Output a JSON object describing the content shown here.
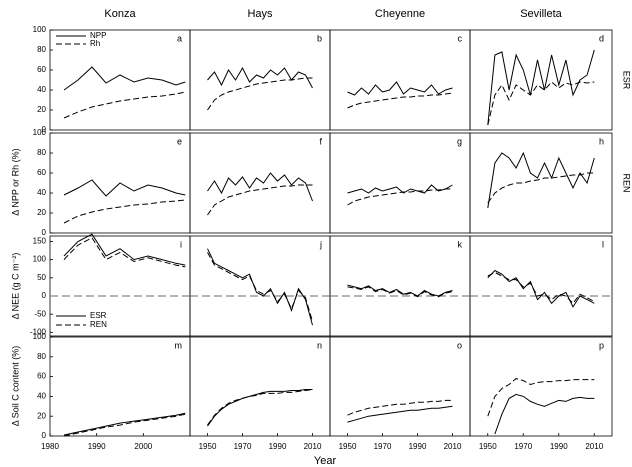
{
  "figure": {
    "x_label": "Year",
    "y_labels": [
      "Δ NPP or Rh (%)",
      "Δ NEE (g C m⁻²)",
      "Δ Soil C content (%)"
    ],
    "side_labels": [
      "ESR",
      "REN"
    ]
  },
  "chart_data": [
    {
      "type": "line",
      "label": "a",
      "title": "Konza",
      "x": [
        1983,
        1986,
        1989,
        1992,
        1995,
        1998,
        2001,
        2004,
        2007,
        2009
      ],
      "xlim": [
        1980,
        2010
      ],
      "ylim": [
        0,
        100
      ],
      "yticks": [
        0,
        20,
        40,
        60,
        80,
        100
      ],
      "legend": "upper left",
      "series": [
        {
          "name": "NPP",
          "color": "#000000",
          "dash": false,
          "values": [
            40,
            50,
            63,
            47,
            55,
            48,
            52,
            50,
            45,
            48
          ]
        },
        {
          "name": "Rh",
          "color": "#000000",
          "dash": true,
          "values": [
            12,
            18,
            23,
            26,
            29,
            31,
            33,
            34,
            36,
            38
          ]
        }
      ]
    },
    {
      "type": "line",
      "label": "b",
      "title": "Hays",
      "x": [
        1950,
        1954,
        1958,
        1962,
        1966,
        1970,
        1974,
        1978,
        1982,
        1986,
        1990,
        1994,
        1998,
        2002,
        2006,
        2010
      ],
      "xlim": [
        1940,
        2020
      ],
      "ylim": [
        0,
        100
      ],
      "series": [
        {
          "color": "#000000",
          "dash": false,
          "values": [
            50,
            58,
            45,
            60,
            50,
            62,
            48,
            55,
            52,
            60,
            55,
            62,
            50,
            58,
            55,
            42
          ]
        },
        {
          "color": "#000000",
          "dash": true,
          "values": [
            20,
            30,
            35,
            38,
            40,
            42,
            44,
            46,
            47,
            48,
            49,
            50,
            50,
            51,
            52,
            52
          ]
        }
      ]
    },
    {
      "type": "line",
      "label": "c",
      "title": "Cheyenne",
      "x": [
        1950,
        1954,
        1958,
        1962,
        1966,
        1970,
        1974,
        1978,
        1982,
        1986,
        1990,
        1994,
        1998,
        2002,
        2006,
        2010
      ],
      "xlim": [
        1940,
        2020
      ],
      "ylim": [
        0,
        100
      ],
      "series": [
        {
          "color": "#000000",
          "dash": false,
          "values": [
            38,
            35,
            42,
            36,
            45,
            38,
            40,
            48,
            36,
            42,
            40,
            38,
            45,
            36,
            40,
            42
          ]
        },
        {
          "color": "#000000",
          "dash": true,
          "values": [
            22,
            25,
            27,
            28,
            29,
            30,
            31,
            32,
            33,
            33,
            34,
            34,
            35,
            35,
            36,
            37
          ]
        }
      ]
    },
    {
      "type": "line",
      "label": "d",
      "title": "Sevilleta",
      "x": [
        1950,
        1954,
        1958,
        1962,
        1966,
        1970,
        1974,
        1978,
        1982,
        1986,
        1990,
        1994,
        1998,
        2002,
        2006,
        2010
      ],
      "xlim": [
        1940,
        2020
      ],
      "ylim": [
        0,
        100
      ],
      "series": [
        {
          "color": "#000000",
          "dash": false,
          "values": [
            5,
            75,
            78,
            40,
            75,
            60,
            35,
            70,
            40,
            75,
            45,
            70,
            35,
            50,
            55,
            80
          ]
        },
        {
          "color": "#000000",
          "dash": true,
          "values": [
            5,
            35,
            45,
            30,
            45,
            40,
            35,
            45,
            40,
            48,
            42,
            47,
            45,
            48,
            47,
            48
          ]
        }
      ]
    },
    {
      "type": "line",
      "label": "e",
      "x": [
        1983,
        1986,
        1989,
        1992,
        1995,
        1998,
        2001,
        2004,
        2007,
        2009
      ],
      "xlim": [
        1980,
        2010
      ],
      "ylim": [
        0,
        100
      ],
      "yticks": [
        0,
        20,
        40,
        60,
        80,
        100
      ],
      "series": [
        {
          "color": "#000000",
          "dash": false,
          "values": [
            38,
            45,
            53,
            37,
            50,
            42,
            48,
            45,
            40,
            38
          ]
        },
        {
          "color": "#000000",
          "dash": true,
          "values": [
            10,
            17,
            21,
            24,
            26,
            28,
            29,
            31,
            32,
            33
          ]
        }
      ]
    },
    {
      "type": "line",
      "label": "f",
      "x": [
        1950,
        1954,
        1958,
        1962,
        1966,
        1970,
        1974,
        1978,
        1982,
        1986,
        1990,
        1994,
        1998,
        2002,
        2006,
        2010
      ],
      "xlim": [
        1940,
        2020
      ],
      "ylim": [
        0,
        100
      ],
      "series": [
        {
          "color": "#000000",
          "dash": false,
          "values": [
            42,
            52,
            40,
            55,
            48,
            56,
            45,
            55,
            50,
            60,
            52,
            58,
            48,
            55,
            50,
            32
          ]
        },
        {
          "color": "#000000",
          "dash": true,
          "values": [
            18,
            28,
            32,
            36,
            38,
            40,
            42,
            43,
            44,
            45,
            46,
            47,
            47,
            48,
            48,
            48
          ]
        }
      ]
    },
    {
      "type": "line",
      "label": "g",
      "x": [
        1950,
        1954,
        1958,
        1962,
        1966,
        1970,
        1974,
        1978,
        1982,
        1986,
        1990,
        1994,
        1998,
        2002,
        2006,
        2010
      ],
      "xlim": [
        1940,
        2020
      ],
      "ylim": [
        0,
        100
      ],
      "series": [
        {
          "color": "#000000",
          "dash": false,
          "values": [
            40,
            42,
            44,
            40,
            45,
            42,
            44,
            46,
            40,
            44,
            42,
            40,
            48,
            42,
            44,
            48
          ]
        },
        {
          "color": "#000000",
          "dash": true,
          "values": [
            28,
            32,
            34,
            36,
            37,
            38,
            39,
            40,
            41,
            41,
            42,
            42,
            43,
            43,
            44,
            44
          ]
        }
      ]
    },
    {
      "type": "line",
      "label": "h",
      "x": [
        1950,
        1954,
        1958,
        1962,
        1966,
        1970,
        1974,
        1978,
        1982,
        1986,
        1990,
        1994,
        1998,
        2002,
        2006,
        2010
      ],
      "xlim": [
        1940,
        2020
      ],
      "ylim": [
        0,
        100
      ],
      "series": [
        {
          "color": "#000000",
          "dash": false,
          "values": [
            25,
            70,
            80,
            75,
            65,
            80,
            60,
            55,
            70,
            55,
            75,
            60,
            45,
            60,
            50,
            75
          ]
        },
        {
          "color": "#000000",
          "dash": true,
          "values": [
            30,
            40,
            45,
            48,
            50,
            50,
            52,
            53,
            55,
            55,
            56,
            57,
            58,
            58,
            60,
            60
          ]
        }
      ]
    },
    {
      "type": "line",
      "label": "i",
      "x": [
        1983,
        1986,
        1989,
        1992,
        1995,
        1998,
        2001,
        2004,
        2007,
        2009
      ],
      "xlim": [
        1980,
        2010
      ],
      "ylim": [
        -110,
        165
      ],
      "yticks": [
        -100,
        -50,
        0,
        50,
        100,
        150
      ],
      "reference_line": 0,
      "legend": "lower left",
      "series": [
        {
          "name": "ESR",
          "color": "#000000",
          "dash": false,
          "values": [
            110,
            150,
            170,
            110,
            130,
            100,
            110,
            100,
            90,
            85
          ]
        },
        {
          "name": "REN",
          "color": "#000000",
          "dash": true,
          "values": [
            100,
            140,
            160,
            100,
            120,
            95,
            105,
            95,
            85,
            80
          ]
        }
      ]
    },
    {
      "type": "line",
      "label": "j",
      "x": [
        1950,
        1954,
        1958,
        1962,
        1966,
        1970,
        1974,
        1978,
        1982,
        1986,
        1990,
        1994,
        1998,
        2002,
        2006,
        2010
      ],
      "xlim": [
        1940,
        2020
      ],
      "ylim": [
        -110,
        165
      ],
      "reference_line": 0,
      "series": [
        {
          "color": "#000000",
          "dash": false,
          "values": [
            130,
            90,
            80,
            70,
            60,
            50,
            60,
            10,
            0,
            20,
            -20,
            10,
            -40,
            20,
            -10,
            -80
          ]
        },
        {
          "color": "#000000",
          "dash": true,
          "values": [
            120,
            85,
            75,
            65,
            55,
            45,
            55,
            15,
            5,
            15,
            -15,
            5,
            -35,
            15,
            -5,
            -70
          ]
        }
      ]
    },
    {
      "type": "line",
      "label": "k",
      "x": [
        1950,
        1954,
        1958,
        1962,
        1966,
        1970,
        1974,
        1978,
        1982,
        1986,
        1990,
        1994,
        1998,
        2002,
        2006,
        2010
      ],
      "xlim": [
        1940,
        2020
      ],
      "ylim": [
        -110,
        165
      ],
      "reference_line": 0,
      "series": [
        {
          "color": "#000000",
          "dash": false,
          "values": [
            30,
            25,
            20,
            28,
            15,
            20,
            10,
            18,
            5,
            10,
            0,
            15,
            5,
            0,
            10,
            15
          ]
        },
        {
          "color": "#000000",
          "dash": true,
          "values": [
            25,
            22,
            18,
            25,
            12,
            18,
            8,
            15,
            3,
            8,
            -2,
            12,
            3,
            -2,
            8,
            12
          ]
        }
      ]
    },
    {
      "type": "line",
      "label": "l",
      "x": [
        1950,
        1954,
        1958,
        1962,
        1966,
        1970,
        1974,
        1978,
        1982,
        1986,
        1990,
        1994,
        1998,
        2002,
        2006,
        2010
      ],
      "xlim": [
        1940,
        2020
      ],
      "ylim": [
        -110,
        165
      ],
      "reference_line": 0,
      "series": [
        {
          "color": "#000000",
          "dash": false,
          "values": [
            50,
            70,
            60,
            40,
            50,
            20,
            40,
            -10,
            10,
            -20,
            0,
            10,
            -30,
            0,
            -10,
            -20
          ]
        },
        {
          "color": "#000000",
          "dash": true,
          "values": [
            55,
            65,
            55,
            45,
            45,
            25,
            35,
            0,
            5,
            -10,
            5,
            0,
            -20,
            5,
            -5,
            -15
          ]
        }
      ]
    },
    {
      "type": "line",
      "label": "m",
      "x": [
        1983,
        1986,
        1989,
        1992,
        1995,
        1998,
        2001,
        2004,
        2007,
        2009
      ],
      "xlim": [
        1980,
        2010
      ],
      "ylim": [
        0,
        100
      ],
      "yticks": [
        0,
        20,
        40,
        60,
        80,
        100
      ],
      "xticks": [
        1980,
        1990,
        2000
      ],
      "series": [
        {
          "color": "#000000",
          "dash": false,
          "values": [
            1,
            4,
            7,
            10,
            13,
            15,
            17,
            19,
            21,
            23
          ]
        },
        {
          "color": "#000000",
          "dash": true,
          "values": [
            0,
            3,
            6,
            9,
            11,
            14,
            16,
            18,
            20,
            22
          ]
        }
      ]
    },
    {
      "type": "line",
      "label": "n",
      "x": [
        1950,
        1954,
        1958,
        1962,
        1966,
        1970,
        1974,
        1978,
        1982,
        1986,
        1990,
        1994,
        1998,
        2002,
        2006,
        2010
      ],
      "xlim": [
        1940,
        2020
      ],
      "ylim": [
        0,
        100
      ],
      "xticks": [
        1950,
        1970,
        1990,
        2010
      ],
      "series": [
        {
          "color": "#000000",
          "dash": false,
          "values": [
            10,
            20,
            27,
            32,
            35,
            38,
            40,
            42,
            44,
            45,
            45,
            45,
            46,
            46,
            47,
            47
          ]
        },
        {
          "color": "#000000",
          "dash": true,
          "values": [
            11,
            21,
            28,
            33,
            36,
            38,
            40,
            41,
            43,
            43,
            43,
            44,
            44,
            45,
            46,
            47
          ]
        }
      ]
    },
    {
      "type": "line",
      "label": "o",
      "x": [
        1950,
        1954,
        1958,
        1962,
        1966,
        1970,
        1974,
        1978,
        1982,
        1986,
        1990,
        1994,
        1998,
        2002,
        2006,
        2010
      ],
      "xlim": [
        1940,
        2020
      ],
      "ylim": [
        0,
        100
      ],
      "xticks": [
        1950,
        1970,
        1990,
        2010
      ],
      "series": [
        {
          "color": "#000000",
          "dash": false,
          "values": [
            14,
            16,
            18,
            20,
            21,
            22,
            23,
            24,
            25,
            26,
            26,
            27,
            28,
            28,
            29,
            30
          ]
        },
        {
          "color": "#000000",
          "dash": true,
          "values": [
            21,
            24,
            26,
            28,
            29,
            30,
            31,
            32,
            32,
            33,
            34,
            34,
            35,
            35,
            36,
            36
          ]
        }
      ]
    },
    {
      "type": "line",
      "label": "p",
      "x": [
        1950,
        1954,
        1958,
        1962,
        1966,
        1970,
        1974,
        1978,
        1982,
        1986,
        1990,
        1994,
        1998,
        2002,
        2006,
        2010
      ],
      "xlim": [
        1940,
        2020
      ],
      "ylim": [
        0,
        100
      ],
      "xticks": [
        1950,
        1970,
        1990,
        2010
      ],
      "series": [
        {
          "color": "#000000",
          "dash": false,
          "values": [
            null,
            2,
            22,
            38,
            42,
            40,
            35,
            32,
            30,
            33,
            36,
            35,
            38,
            39,
            38,
            38
          ]
        },
        {
          "color": "#000000",
          "dash": true,
          "values": [
            20,
            40,
            48,
            52,
            58,
            56,
            52,
            54,
            55,
            55,
            56,
            56,
            57,
            57,
            57,
            57
          ]
        }
      ]
    }
  ]
}
